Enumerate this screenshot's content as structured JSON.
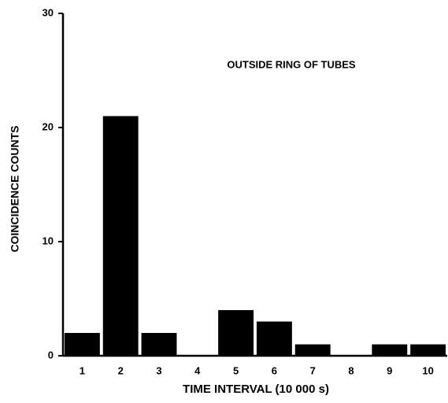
{
  "chart_data": {
    "type": "bar",
    "annotation": "OUTSIDE RING OF TUBES",
    "xlabel": "TIME INTERVAL (10 000 s)",
    "ylabel": "COINCIDENCE COUNTS",
    "categories": [
      "1",
      "2",
      "3",
      "4",
      "5",
      "6",
      "7",
      "8",
      "9",
      "10"
    ],
    "values": [
      2,
      21,
      2,
      0,
      4,
      3,
      1,
      0,
      1,
      1
    ],
    "color": "#000000",
    "ylim": [
      0,
      30
    ],
    "yticks": [
      0,
      10,
      20,
      30
    ]
  }
}
